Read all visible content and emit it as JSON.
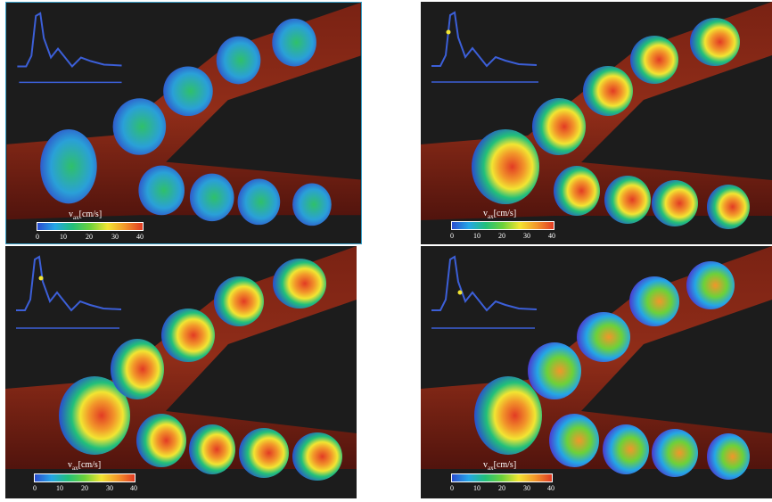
{
  "colorbar": {
    "label_main": "v",
    "label_sub": "ax",
    "label_unit": "[cm/s]",
    "ticks": [
      "0",
      "10",
      "20",
      "30",
      "40"
    ],
    "gradient": [
      "#2a4dd0",
      "#24a6e6",
      "#22c07a",
      "#6cd13a",
      "#f2e532",
      "#f2962a",
      "#e23b24"
    ]
  },
  "panels": [
    {
      "name": "top-left",
      "cardiac_phase_fraction": null
    },
    {
      "name": "top-right",
      "cardiac_phase_fraction": 0.12
    },
    {
      "name": "bottom-left",
      "cardiac_phase_fraction": 0.18
    },
    {
      "name": "bottom-right",
      "cardiac_phase_fraction": 0.22
    }
  ],
  "colors": {
    "vessel": "#7a1a0e",
    "background": "#1c1c1c",
    "waveform": "#3c5fd8",
    "marker": "#f2e532",
    "panel_border": "#3aa0c8"
  }
}
